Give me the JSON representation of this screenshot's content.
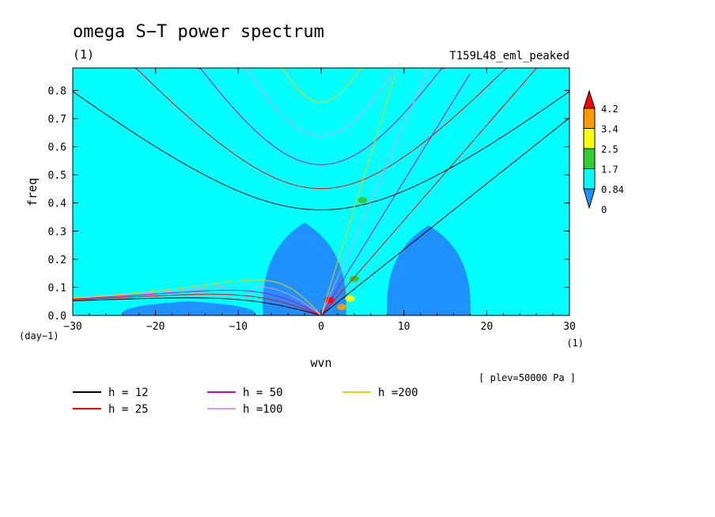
{
  "chart_data": {
    "type": "heatmap",
    "title": "omega S−T power spectrum",
    "subtitle": "(1)",
    "run_label": "T159L48_eml_peaked",
    "xlabel": "wvn",
    "ylabel": "freq",
    "x_unit": "(1)",
    "y_unit": "(day−1)",
    "level_note": "[ plev=50000 Pa ]",
    "xlim": [
      -30,
      30
    ],
    "ylim": [
      0,
      0.88
    ],
    "x_ticks": [
      -30,
      -20,
      -10,
      0,
      10,
      20,
      30
    ],
    "x_tick_labels": [
      "−30",
      "−20",
      "−10",
      "0",
      "10",
      "20",
      "30"
    ],
    "y_ticks": [
      0,
      0.1,
      0.2,
      0.3,
      0.4,
      0.5,
      0.6,
      0.7,
      0.8
    ],
    "y_tick_labels": [
      "0.0",
      "0.1",
      "0.2",
      "0.3",
      "0.4",
      "0.5",
      "0.6",
      "0.7",
      "0.8"
    ],
    "colorbar": {
      "levels": [
        0,
        0.84,
        1.7,
        2.5,
        3.4,
        4.2
      ],
      "level_labels": [
        "0",
        "0.84",
        "1.7",
        "2.5",
        "3.4",
        "4.2"
      ],
      "colors": [
        "#1e90ff",
        "#00ffff",
        "#32cd32",
        "#ffff00",
        "#ff9900",
        "#ff0000"
      ]
    },
    "background_color": "#00ffff",
    "low_power_color": "#1e90ff",
    "low_power_regions": [
      {
        "x": [
          -7,
          3
        ],
        "y": [
          0.0,
          0.33
        ]
      },
      {
        "x": [
          8,
          18
        ],
        "y": [
          0.0,
          0.32
        ]
      },
      {
        "x": [
          -24,
          -8
        ],
        "y": [
          0.0,
          0.05
        ]
      }
    ],
    "spectral_peaks": [
      {
        "x": 1,
        "y": 0.055,
        "level": 4.2
      },
      {
        "x": 2.5,
        "y": 0.03,
        "level": 3.4
      },
      {
        "x": 3.5,
        "y": 0.06,
        "level": 2.5
      },
      {
        "x": 4,
        "y": 0.13,
        "level": 1.7
      },
      {
        "x": 5,
        "y": 0.41,
        "level": 1.7
      }
    ],
    "series": [
      {
        "name": "h = 12",
        "color": "#000000"
      },
      {
        "name": "h = 25",
        "color": "#ff0000"
      },
      {
        "name": "h = 50",
        "color": "#cc00cc"
      },
      {
        "name": "h =100",
        "color": "#dd99dd"
      },
      {
        "name": "h =200",
        "color": "#e6d200"
      }
    ],
    "grid": false,
    "legend_placement": "bottom-left"
  }
}
